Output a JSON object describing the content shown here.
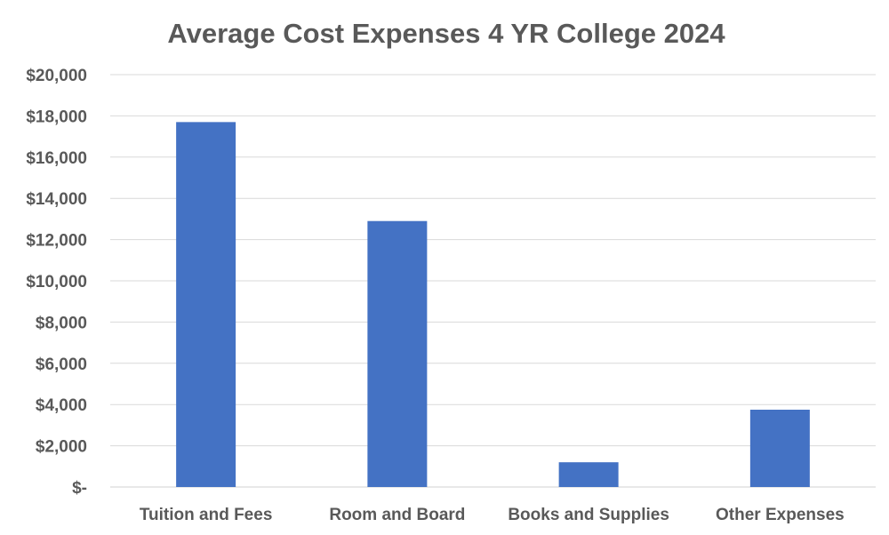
{
  "chart_data": {
    "type": "bar",
    "title": "Average Cost Expenses 4 YR College 2024",
    "xlabel": "",
    "ylabel": "",
    "categories": [
      "Tuition and Fees",
      "Room and Board",
      "Books and Supplies",
      "Other Expenses"
    ],
    "values": [
      17700,
      12900,
      1200,
      3750
    ],
    "ylim": [
      0,
      20000
    ],
    "yticks": [
      0,
      2000,
      4000,
      6000,
      8000,
      10000,
      12000,
      14000,
      16000,
      18000,
      20000
    ],
    "ytick_labels": [
      "$-",
      "$2,000",
      "$4,000",
      "$6,000",
      "$8,000",
      "$10,000",
      "$12,000",
      "$14,000",
      "$16,000",
      "$18,000",
      "$20,000"
    ],
    "grid": true,
    "legend": "none",
    "colors": {
      "bar": "#4472c4",
      "grid": "#d9d9d9",
      "text": "#595959"
    }
  }
}
